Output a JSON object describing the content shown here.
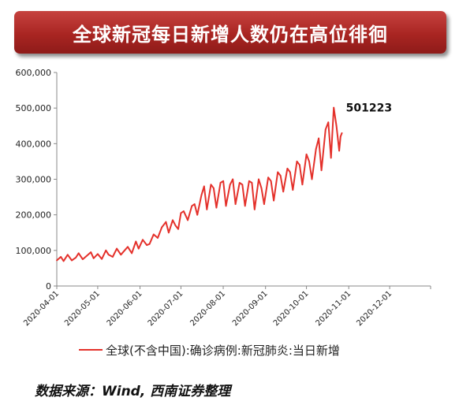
{
  "banner": {
    "title": "全球新冠每日新增人数仍在高位徘徊"
  },
  "source": {
    "text": "数据来源：Wind, 西南证券整理"
  },
  "colors": {
    "series": "#e4312b",
    "banner": "#a92522"
  },
  "chart_data": {
    "type": "line",
    "title": "全球新冠每日新增人数仍在高位徘徊",
    "xlabel": "",
    "ylabel": "",
    "ylim": [
      0,
      600000
    ],
    "yticks": [
      "0",
      "100,000",
      "200,000",
      "300,000",
      "400,000",
      "500,000",
      "600,000"
    ],
    "ytick_values": [
      0,
      100000,
      200000,
      300000,
      400000,
      500000,
      600000
    ],
    "xlim": [
      "2020-04-01",
      "2020-12-31"
    ],
    "xticks": [
      "2020-04-01",
      "2020-05-01",
      "2020-06-01",
      "2020-07-01",
      "2020-08-01",
      "2020-09-01",
      "2020-10-01",
      "2020-11-01",
      "2020-12-01",
      "2020-12-31"
    ],
    "grid": false,
    "legend_position": "bottom",
    "annotation": {
      "text": "501223",
      "x": "2020-10-23",
      "y": 501223
    },
    "series": [
      {
        "name": "全球(不含中国):确诊病例:新冠肺炎:当日新增",
        "color": "#e4312b",
        "x": [
          "2020-04-01",
          "2020-04-04",
          "2020-04-06",
          "2020-04-09",
          "2020-04-12",
          "2020-04-15",
          "2020-04-17",
          "2020-04-20",
          "2020-04-23",
          "2020-04-26",
          "2020-04-28",
          "2020-05-01",
          "2020-05-04",
          "2020-05-07",
          "2020-05-09",
          "2020-05-12",
          "2020-05-15",
          "2020-05-18",
          "2020-05-20",
          "2020-05-23",
          "2020-05-26",
          "2020-05-29",
          "2020-05-31",
          "2020-06-03",
          "2020-06-06",
          "2020-06-08",
          "2020-06-11",
          "2020-06-14",
          "2020-06-17",
          "2020-06-20",
          "2020-06-22",
          "2020-06-25",
          "2020-06-27",
          "2020-06-29",
          "2020-07-01",
          "2020-07-03",
          "2020-07-06",
          "2020-07-09",
          "2020-07-11",
          "2020-07-13",
          "2020-07-16",
          "2020-07-18",
          "2020-07-20",
          "2020-07-23",
          "2020-07-25",
          "2020-07-27",
          "2020-07-30",
          "2020-08-01",
          "2020-08-03",
          "2020-08-06",
          "2020-08-08",
          "2020-08-10",
          "2020-08-13",
          "2020-08-15",
          "2020-08-17",
          "2020-08-20",
          "2020-08-22",
          "2020-08-24",
          "2020-08-27",
          "2020-08-29",
          "2020-08-31",
          "2020-09-03",
          "2020-09-05",
          "2020-09-07",
          "2020-09-10",
          "2020-09-12",
          "2020-09-14",
          "2020-09-17",
          "2020-09-19",
          "2020-09-21",
          "2020-09-24",
          "2020-09-26",
          "2020-09-28",
          "2020-10-01",
          "2020-10-03",
          "2020-10-05",
          "2020-10-08",
          "2020-10-10",
          "2020-10-12",
          "2020-10-15",
          "2020-10-17",
          "2020-10-19",
          "2020-10-21",
          "2020-10-23",
          "2020-10-25",
          "2020-10-26",
          "2020-10-27"
        ],
        "values": [
          72000,
          82000,
          70000,
          88000,
          72000,
          80000,
          92000,
          75000,
          85000,
          95000,
          78000,
          90000,
          76000,
          100000,
          88000,
          82000,
          105000,
          88000,
          97000,
          110000,
          92000,
          125000,
          105000,
          130000,
          115000,
          118000,
          145000,
          135000,
          165000,
          180000,
          150000,
          185000,
          170000,
          160000,
          205000,
          210000,
          185000,
          225000,
          230000,
          200000,
          255000,
          280000,
          215000,
          285000,
          275000,
          220000,
          290000,
          295000,
          225000,
          285000,
          300000,
          230000,
          290000,
          285000,
          225000,
          295000,
          290000,
          215000,
          300000,
          275000,
          230000,
          305000,
          295000,
          240000,
          320000,
          310000,
          265000,
          330000,
          320000,
          270000,
          350000,
          340000,
          285000,
          370000,
          350000,
          300000,
          385000,
          415000,
          325000,
          440000,
          460000,
          360000,
          501223,
          450000,
          380000,
          420000,
          430000
        ]
      }
    ]
  }
}
